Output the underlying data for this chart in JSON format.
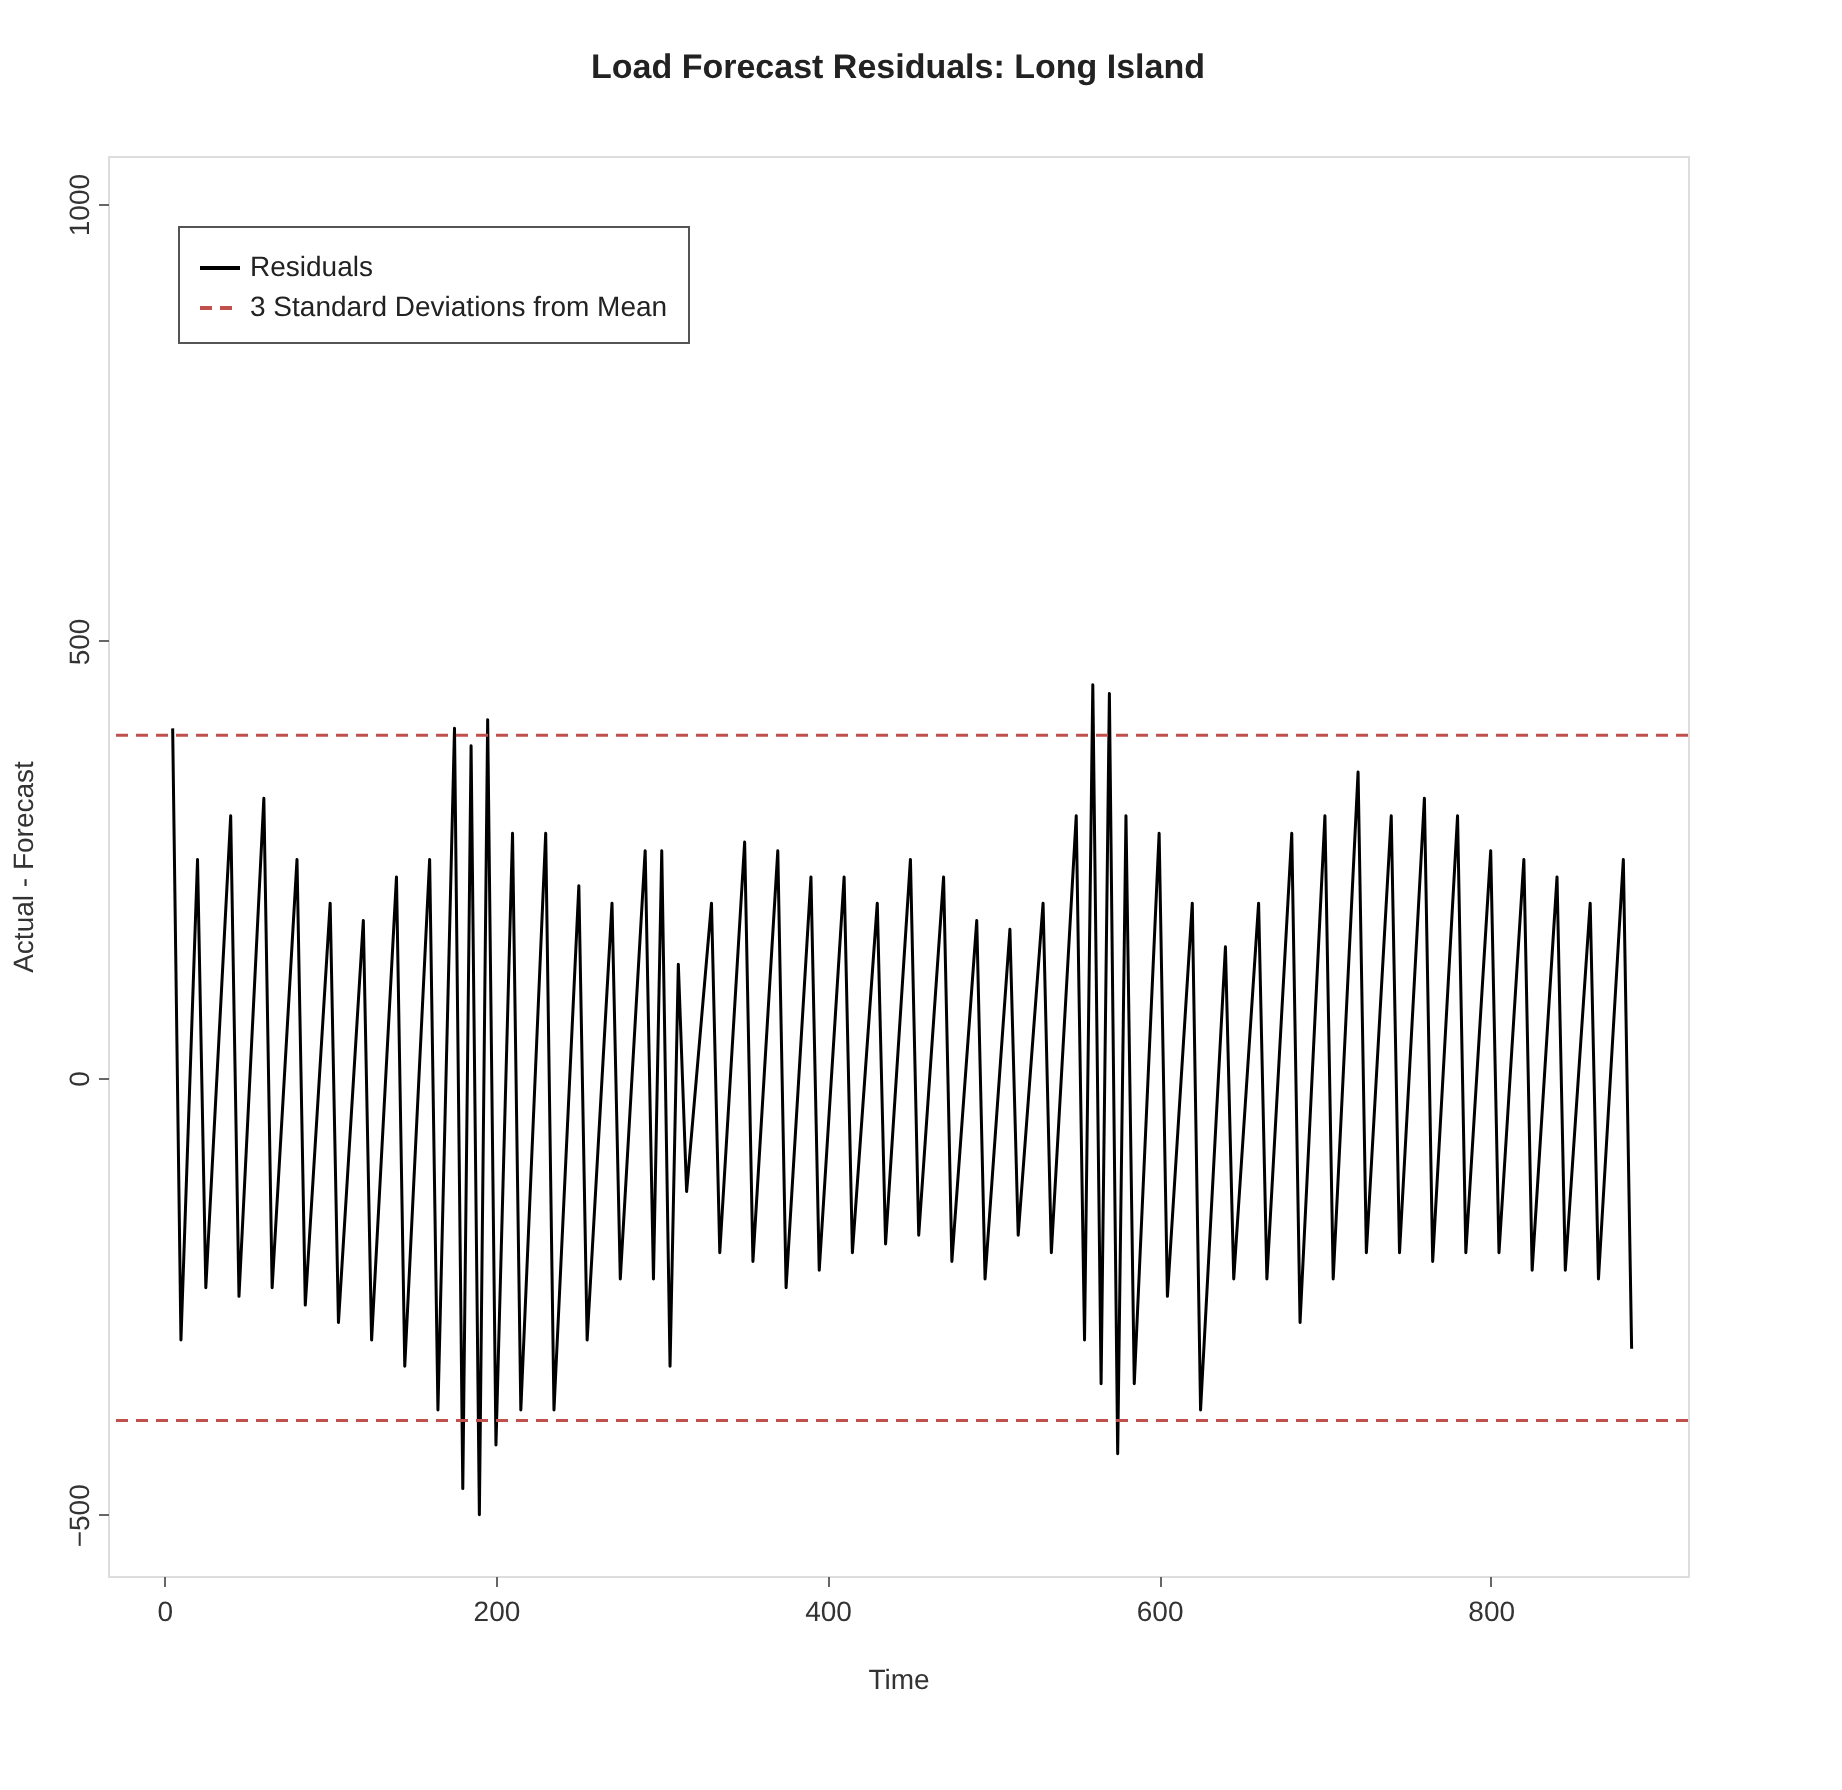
{
  "chart_data": {
    "type": "line",
    "title": "Load Forecast Residuals: Long Island",
    "xlabel": "Time",
    "ylabel": "Actual - Forecast",
    "xlim": [
      -34,
      919
    ],
    "ylim": [
      -570,
      1055
    ],
    "xticks": [
      0,
      200,
      400,
      600,
      800
    ],
    "yticks": [
      -500,
      0,
      500,
      1000
    ],
    "series": [
      {
        "name": "Residuals",
        "color": "#000000",
        "line_style": "solid",
        "x": [
          5,
          10,
          20,
          25,
          40,
          45,
          60,
          65,
          80,
          85,
          100,
          105,
          120,
          125,
          140,
          145,
          160,
          165,
          175,
          180,
          185,
          190,
          195,
          200,
          210,
          215,
          230,
          235,
          250,
          255,
          270,
          275,
          290,
          295,
          300,
          305,
          310,
          315,
          330,
          335,
          350,
          355,
          370,
          375,
          390,
          395,
          410,
          415,
          430,
          435,
          450,
          455,
          470,
          475,
          490,
          495,
          510,
          515,
          530,
          535,
          550,
          555,
          560,
          565,
          570,
          575,
          580,
          585,
          600,
          605,
          620,
          625,
          640,
          645,
          660,
          665,
          680,
          685,
          700,
          705,
          720,
          725,
          740,
          745,
          760,
          765,
          780,
          785,
          800,
          805,
          820,
          825,
          840,
          845,
          860,
          865,
          880,
          885
        ],
        "values": [
          400,
          -300,
          250,
          -240,
          300,
          -250,
          320,
          -240,
          250,
          -260,
          200,
          -280,
          180,
          -300,
          230,
          -330,
          250,
          -380,
          400,
          -470,
          380,
          -500,
          410,
          -420,
          280,
          -380,
          280,
          -380,
          220,
          -300,
          200,
          -230,
          260,
          -230,
          260,
          -330,
          130,
          -130,
          200,
          -200,
          270,
          -210,
          260,
          -240,
          230,
          -220,
          230,
          -200,
          200,
          -190,
          250,
          -180,
          230,
          -210,
          180,
          -230,
          170,
          -180,
          200,
          -200,
          300,
          -300,
          450,
          -350,
          440,
          -430,
          300,
          -350,
          280,
          -250,
          200,
          -380,
          150,
          -230,
          200,
          -230,
          280,
          -280,
          300,
          -230,
          350,
          -200,
          300,
          -200,
          320,
          -210,
          300,
          -200,
          260,
          -200,
          250,
          -220,
          230,
          -220,
          200,
          -230,
          250,
          -310
        ]
      }
    ],
    "ref_lines": [
      {
        "axis": "y",
        "value": 392,
        "label": "3 Standard Deviations from Mean",
        "color": "#c0504d",
        "line_style": "dashed"
      },
      {
        "axis": "y",
        "value": -392,
        "color": "#c0504d",
        "line_style": "dashed"
      }
    ],
    "legend": "top left",
    "grid": false
  }
}
